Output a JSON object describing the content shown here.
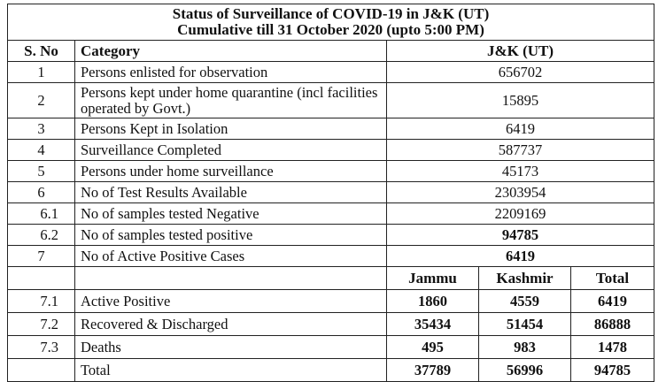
{
  "title_line1": "Status of Surveillance of COVID-19 in J&K (UT)",
  "title_line2": "Cumulative till 31 October 2020 (upto 5:00 PM)",
  "headers": {
    "sno": "S. No",
    "category": "Category",
    "value": "J&K (UT)"
  },
  "rows": [
    {
      "sno": "1",
      "category": "Persons enlisted for observation",
      "value": "656702"
    },
    {
      "sno": "2",
      "category": "Persons kept under home quarantine (incl facilities operated by Govt.)",
      "value": "15895"
    },
    {
      "sno": "3",
      "category": "Persons Kept in Isolation",
      "value": "6419"
    },
    {
      "sno": "4",
      "category": "Surveillance  Completed",
      "value": "587737"
    },
    {
      "sno": "5",
      "category": "Persons under home surveillance",
      "value": "45173"
    },
    {
      "sno": "6",
      "category": "No of Test Results Available",
      "value": "2303954"
    },
    {
      "sno": "6.1",
      "category": "No of samples tested Negative",
      "value": "2209169"
    },
    {
      "sno": "6.2",
      "category": "No of samples tested positive",
      "value": "94785"
    },
    {
      "sno": "7",
      "category": "No of Active Positive Cases",
      "value": "6419"
    }
  ],
  "sub_headers": {
    "jammu": "Jammu",
    "kashmir": "Kashmir",
    "total": "Total"
  },
  "sub_rows": [
    {
      "sno": "7.1",
      "category": "Active Positive",
      "jammu": "1860",
      "kashmir": "4559",
      "total": "6419"
    },
    {
      "sno": "7.2",
      "category": "Recovered & Discharged",
      "jammu": "35434",
      "kashmir": "51454",
      "total": "86888"
    },
    {
      "sno": "7.3",
      "category": "Deaths",
      "jammu": "495",
      "kashmir": "983",
      "total": "1478"
    },
    {
      "sno": "",
      "category": "Total",
      "jammu": "37789",
      "kashmir": "56996",
      "total": "94785"
    }
  ]
}
